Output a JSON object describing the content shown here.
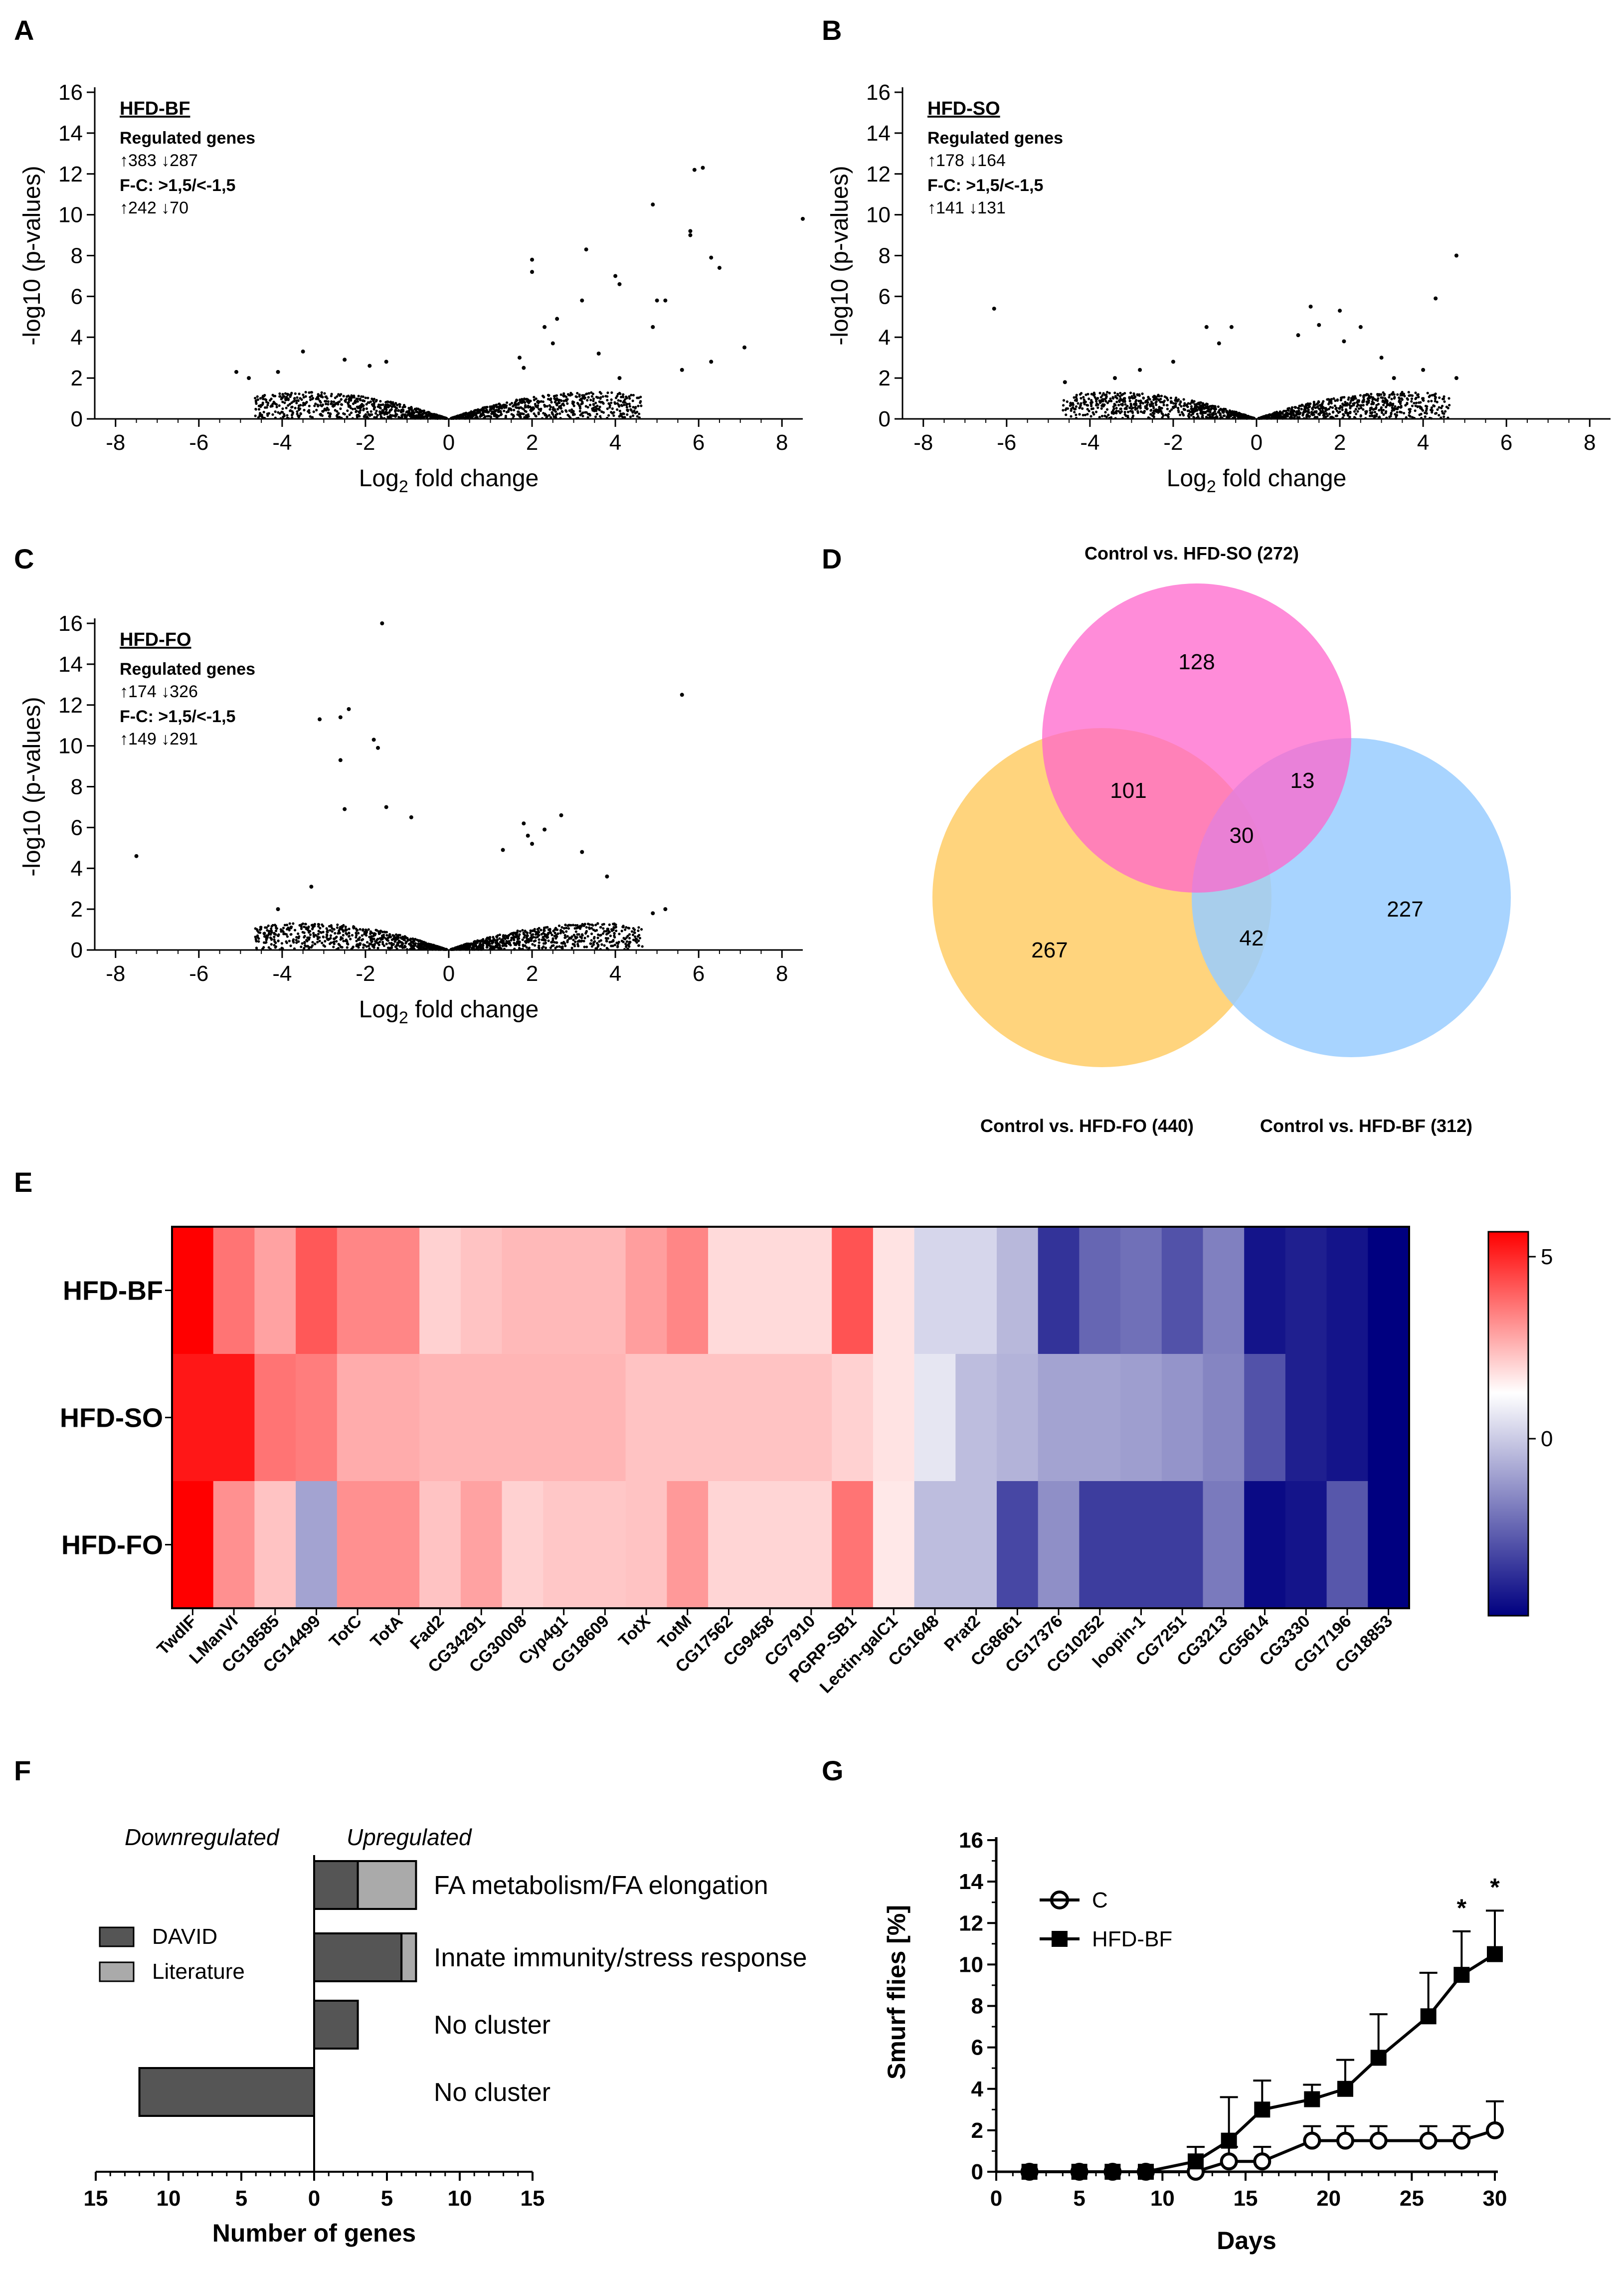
{
  "panels": {
    "A": "A",
    "B": "B",
    "C": "C",
    "D": "D",
    "E": "E",
    "F": "F",
    "G": "G"
  },
  "volcano": {
    "x_ticks": [
      "-8",
      "-6",
      "-4",
      "-2",
      "0",
      "2",
      "4",
      "6",
      "8"
    ],
    "y_ticks": [
      "0",
      "2",
      "4",
      "6",
      "8",
      "10",
      "12",
      "14",
      "16"
    ],
    "ylabel": "-log10 (p-values)",
    "xlabel_main": "Log",
    "xlabel_sub": "2",
    "xlabel_rest": " fold change",
    "plots": [
      {
        "title": "HFD-BF",
        "reg_label": "Regulated genes",
        "reg_counts": "↑383 ↓287",
        "fc_label": "F-C: >1,5/<-1,5",
        "fc_counts": "↑242 ↓70"
      },
      {
        "title": "HFD-SO",
        "reg_label": "Regulated genes",
        "reg_counts": "↑178 ↓164",
        "fc_label": "F-C: >1,5/<-1,5",
        "fc_counts": "↑141 ↓131"
      },
      {
        "title": "HFD-FO",
        "reg_label": "Regulated genes",
        "reg_counts": "↑174 ↓326",
        "fc_label": "F-C: >1,5/<-1,5",
        "fc_counts": "↑149 ↓291"
      }
    ]
  },
  "venn": {
    "label_so": "Control vs. HFD-SO (272)",
    "label_fo": "Control vs. HFD-FO (440)",
    "label_bf": "Control vs. HFD-BF (312)",
    "colors": {
      "so": "#ff66cc",
      "fo": "#ffcc66",
      "bf": "#99ccff"
    },
    "n_so_only": "128",
    "n_so_fo": "101",
    "n_so_bf": "13",
    "n_all": "30",
    "n_fo_only": "267",
    "n_fo_bf": "42",
    "n_bf_only": "227"
  },
  "chart_data": [
    {
      "type": "scatter",
      "title": "HFD-BF",
      "xlabel": "Log2 fold change",
      "ylabel": "-log10 (p-values)",
      "xlim": [
        -8.5,
        8.5
      ],
      "ylim": [
        0,
        16
      ],
      "x": [
        4.9,
        5.9,
        6.1,
        5.8,
        5.8,
        6.3,
        6.5,
        8.5,
        4.0,
        4.1,
        3.3,
        2.0,
        2.0,
        5.0,
        4.9,
        5.2,
        7.1,
        5.6,
        3.2,
        2.6,
        2.3,
        2.5,
        3.6,
        4.1,
        6.3,
        1.7,
        1.8,
        -1.5,
        -1.9,
        -2.5,
        -3.5,
        -4.1,
        -4.8,
        -5.1
      ],
      "y": [
        10.5,
        12.2,
        12.3,
        9.2,
        9.0,
        7.9,
        7.4,
        9.8,
        7.0,
        6.6,
        8.3,
        7.8,
        7.2,
        5.8,
        4.5,
        5.8,
        3.5,
        2.4,
        5.8,
        4.9,
        4.5,
        3.7,
        3.2,
        2.0,
        2.8,
        3.0,
        2.5,
        2.8,
        2.6,
        2.9,
        3.3,
        2.3,
        2.0,
        2.3
      ]
    },
    {
      "type": "scatter",
      "title": "HFD-SO",
      "xlabel": "Log2 fold change",
      "ylabel": "-log10 (p-values)",
      "xlim": [
        -8.5,
        8.5
      ],
      "ylim": [
        0,
        16
      ],
      "x": [
        -6.3,
        4.8,
        4.3,
        4.0,
        4.8,
        1.3,
        2.0,
        2.5,
        1.0,
        -1.2,
        -0.6,
        -0.9,
        1.5,
        2.1,
        3.0,
        3.3,
        -2.0,
        -2.8,
        -3.4,
        -4.6
      ],
      "y": [
        5.4,
        8.0,
        5.9,
        2.4,
        2.0,
        5.5,
        5.3,
        4.5,
        4.1,
        4.5,
        4.5,
        3.7,
        4.6,
        3.8,
        3.0,
        2.0,
        2.8,
        2.4,
        2.0,
        1.8
      ]
    },
    {
      "type": "scatter",
      "title": "HFD-FO",
      "xlabel": "Log2 fold change",
      "ylabel": "-log10 (p-values)",
      "xlim": [
        -8.5,
        8.5
      ],
      "ylim": [
        0,
        16
      ],
      "x": [
        -1.6,
        -2.4,
        -2.6,
        -3.1,
        -1.8,
        -1.7,
        -2.6,
        -1.5,
        -2.5,
        -0.9,
        5.6,
        -7.5,
        1.8,
        2.3,
        1.9,
        2.0,
        1.3,
        3.2,
        3.8,
        5.2,
        4.9,
        2.7,
        -3.3,
        -4.1
      ],
      "y": [
        16.0,
        11.8,
        11.4,
        11.3,
        10.3,
        9.9,
        9.3,
        7.0,
        6.9,
        6.5,
        12.5,
        4.6,
        6.2,
        5.9,
        5.6,
        5.2,
        4.9,
        4.8,
        3.6,
        2.0,
        1.8,
        6.6,
        3.1,
        2.0
      ]
    },
    {
      "type": "heatmap",
      "title": "",
      "rows": [
        "HFD-BF",
        "HFD-SO",
        "HFD-FO"
      ],
      "columns": [
        "TwdlF",
        "LManVI",
        "CG18585",
        "CG14499",
        "TotC",
        "TotA",
        "Fad2",
        "CG34291",
        "CG30008",
        "Cyp4g1",
        "CG18609",
        "TotX",
        "TotM",
        "CG17562",
        "CG9458",
        "CG7910",
        "PGRP-SB1",
        "Lectin-galC1",
        "CG1648",
        "Prat2",
        "CG8661",
        "CG17376",
        "CG10252",
        "loopin-1",
        "CG7251",
        "CG3213",
        "CG5614",
        "CG3330",
        "CG17196",
        "CG18853"
      ],
      "values": [
        [
          5.5,
          3.0,
          2.0,
          3.6,
          2.6,
          2.6,
          1.0,
          1.3,
          1.5,
          1.5,
          1.5,
          2.1,
          2.6,
          0.8,
          0.8,
          0.8,
          3.7,
          0.6,
          -0.8,
          -0.8,
          -1.4,
          -4.0,
          -3.0,
          -2.8,
          -3.4,
          -2.5,
          -4.6,
          -4.4,
          -4.6,
          -5.0
        ],
        [
          5.0,
          5.0,
          3.0,
          2.8,
          1.8,
          1.8,
          1.6,
          1.6,
          1.6,
          1.6,
          1.6,
          1.3,
          1.3,
          1.3,
          1.3,
          1.3,
          1.0,
          0.6,
          -0.5,
          -1.3,
          -1.5,
          -1.8,
          -1.8,
          -1.9,
          -2.1,
          -2.4,
          -3.4,
          -4.4,
          -4.6,
          -5.0
        ],
        [
          5.5,
          2.4,
          1.3,
          -1.8,
          2.4,
          2.4,
          1.3,
          2.0,
          1.0,
          1.2,
          1.2,
          1.3,
          2.2,
          0.9,
          0.9,
          0.9,
          3.0,
          0.5,
          -1.3,
          -1.3,
          -3.6,
          -2.2,
          -3.8,
          -3.8,
          -3.8,
          -2.6,
          -4.8,
          -4.6,
          -3.3,
          -5.0
        ]
      ],
      "colorbar_ticks": [
        "5",
        "0"
      ],
      "zlim": [
        -5,
        5.5
      ]
    },
    {
      "type": "bar",
      "title": "",
      "orientation": "horizontal",
      "header_down": "Downregulated",
      "header_up": "Upregulated",
      "xlabel": "Number of genes",
      "x_ticks": [
        "15",
        "10",
        "5",
        "0",
        "5",
        "10",
        "15"
      ],
      "categories": [
        "FA metabolism/FA elongation",
        "Innate immunity/stress response",
        "No cluster",
        "No cluster"
      ],
      "series": [
        {
          "name": "DAVID",
          "values": [
            3,
            6,
            3,
            -12
          ]
        },
        {
          "name": "Literature",
          "values": [
            4,
            1,
            0,
            0
          ]
        }
      ],
      "xlim": [
        -15,
        15
      ]
    },
    {
      "type": "line",
      "title": "",
      "xlabel": "Days",
      "ylabel": "Smurf flies [%]",
      "x_ticks": [
        "0",
        "5",
        "10",
        "15",
        "20",
        "25",
        "30"
      ],
      "y_ticks": [
        "0",
        "2",
        "4",
        "6",
        "8",
        "10",
        "12",
        "14",
        "16"
      ],
      "xlim": [
        0,
        30
      ],
      "ylim": [
        0,
        16
      ],
      "series": [
        {
          "name": "C",
          "x": [
            2,
            5,
            7,
            9,
            12,
            14,
            16,
            19,
            21,
            23,
            26,
            28,
            30
          ],
          "y": [
            0,
            0,
            0,
            0,
            0,
            0.5,
            0.5,
            1.5,
            1.5,
            1.5,
            1.5,
            1.5,
            2.0
          ],
          "err": [
            0,
            0,
            0,
            0,
            0,
            0.7,
            0.7,
            0.7,
            0.7,
            0.7,
            0.7,
            0.7,
            1.4
          ]
        },
        {
          "name": "HFD-BF",
          "x": [
            2,
            5,
            7,
            9,
            12,
            14,
            16,
            19,
            21,
            23,
            26,
            28,
            30
          ],
          "y": [
            0,
            0,
            0,
            0,
            0.5,
            1.5,
            3.0,
            3.5,
            4.0,
            5.5,
            7.5,
            9.5,
            10.5
          ],
          "err": [
            0,
            0,
            0,
            0,
            0.7,
            2.1,
            1.4,
            0.7,
            1.4,
            2.1,
            2.1,
            2.1,
            2.1
          ]
        }
      ],
      "annotations": [
        {
          "x": 28,
          "text": "*"
        },
        {
          "x": 30,
          "text": "*"
        }
      ]
    }
  ]
}
